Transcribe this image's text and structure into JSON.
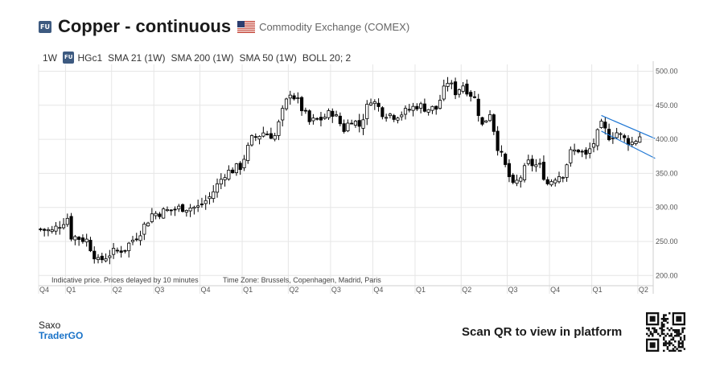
{
  "header": {
    "badge": "FU",
    "title": "Copper - continuous",
    "exchange": "Commodity Exchange (COMEX)",
    "flag_icon": "us-flag-icon"
  },
  "indicators": {
    "interval": "1W",
    "badge": "FU",
    "symbol": "HGc1",
    "sma21": "SMA 21 (1W)",
    "sma200": "SMA 200 (1W)",
    "sma50": "SMA 50 (1W)",
    "boll": "BOLL 20; 2"
  },
  "notice": {
    "indicative": "Indicative price. Prices delayed by 10 minutes",
    "timezone": "Time Zone: Brussels, Copenhagen, Madrid, Paris"
  },
  "footer": {
    "brand_line1": "Saxo",
    "brand_line2": "TraderGO",
    "scan_label": "Scan QR to view in platform"
  },
  "colors": {
    "candle": "#000000",
    "channel": "#1f77d4",
    "grid": "#e6e6e6",
    "axis_text": "#555555"
  },
  "chart_data": {
    "type": "candlestick",
    "title": "Copper - continuous",
    "interval": "1W",
    "ylim": [
      185,
      510
    ],
    "y_ticks": [
      "200.00",
      "250.00",
      "300.00",
      "350.00",
      "400.00",
      "450.00",
      "500.00"
    ],
    "x_ticks": [
      "Q4",
      "Q1",
      "Q2",
      "Q3",
      "Q4",
      "Q1",
      "Q2",
      "Q3",
      "Q4",
      "Q1",
      "Q2",
      "Q3",
      "Q4",
      "Q1",
      "Q2"
    ],
    "x_tick_weeks": [
      0,
      7,
      19,
      30,
      42,
      53,
      65,
      76,
      87,
      98,
      110,
      122,
      133,
      144,
      156
    ],
    "weeks": 160,
    "key_closes": [
      [
        0,
        268
      ],
      [
        3,
        265
      ],
      [
        5,
        275
      ],
      [
        7,
        285
      ],
      [
        8,
        258
      ],
      [
        10,
        255
      ],
      [
        12,
        252
      ],
      [
        15,
        220
      ],
      [
        18,
        232
      ],
      [
        22,
        240
      ],
      [
        26,
        265
      ],
      [
        29,
        290
      ],
      [
        33,
        295
      ],
      [
        37,
        300
      ],
      [
        41,
        300
      ],
      [
        44,
        315
      ],
      [
        48,
        350
      ],
      [
        52,
        360
      ],
      [
        55,
        400
      ],
      [
        58,
        410
      ],
      [
        61,
        405
      ],
      [
        63,
        440
      ],
      [
        65,
        470
      ],
      [
        67,
        455
      ],
      [
        70,
        425
      ],
      [
        73,
        430
      ],
      [
        76,
        440
      ],
      [
        79,
        415
      ],
      [
        81,
        430
      ],
      [
        83,
        420
      ],
      [
        86,
        460
      ],
      [
        89,
        440
      ],
      [
        92,
        435
      ],
      [
        95,
        440
      ],
      [
        98,
        450
      ],
      [
        101,
        445
      ],
      [
        103,
        445
      ],
      [
        106,
        485
      ],
      [
        108,
        470
      ],
      [
        110,
        480
      ],
      [
        113,
        460
      ],
      [
        115,
        420
      ],
      [
        117,
        440
      ],
      [
        119,
        390
      ],
      [
        121,
        360
      ],
      [
        123,
        330
      ],
      [
        125,
        345
      ],
      [
        127,
        365
      ],
      [
        130,
        360
      ],
      [
        132,
        335
      ],
      [
        134,
        345
      ],
      [
        136,
        350
      ],
      [
        138,
        380
      ],
      [
        140,
        385
      ],
      [
        142,
        375
      ],
      [
        144,
        395
      ],
      [
        146,
        420
      ],
      [
        148,
        405
      ],
      [
        150,
        410
      ],
      [
        152,
        400
      ],
      [
        154,
        395
      ],
      [
        156,
        405
      ]
    ],
    "channel_lines": [
      {
        "x": [
          146,
          160
        ],
        "y": [
          435,
          401
        ]
      },
      {
        "x": [
          146,
          160
        ],
        "y": [
          412,
          372
        ]
      }
    ],
    "grid": true
  }
}
